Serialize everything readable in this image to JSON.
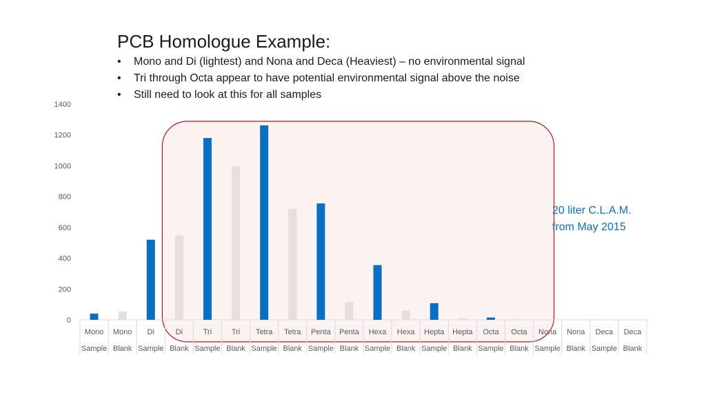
{
  "slide": {
    "title": "PCB Homologue Example:",
    "bullets": [
      "Mono and Di (lightest) and Nona and Deca (Heaviest) – no environmental signal",
      "Tri through Octa appear to have potential environmental signal above the noise",
      "Still need to look at this for all samples"
    ],
    "bullet_symbol": "•",
    "annotation": [
      "20 liter C.L.A.M.",
      "from May 2015"
    ]
  },
  "colors": {
    "sample_bar": "#0a6fc2",
    "blank_bar": "#e5e0df",
    "highlight_border": "#c0141c",
    "highlight_fill": "#fbf3f2",
    "annotation_text": "#0a6fc2",
    "axis_text": "#595959",
    "grid_line": "#d9d9d9"
  },
  "chart_data": {
    "type": "bar",
    "title": "",
    "xlabel": "",
    "ylabel": "",
    "ylim": [
      0,
      1400
    ],
    "yticks": [
      0,
      200,
      400,
      600,
      800,
      1000,
      1200,
      1400
    ],
    "grid": false,
    "categories": [
      {
        "top": "Mono",
        "bottom": "Sample"
      },
      {
        "top": "Mono",
        "bottom": "Blank"
      },
      {
        "top": "Di",
        "bottom": "Sample"
      },
      {
        "top": "Di",
        "bottom": "Blank"
      },
      {
        "top": "Tri",
        "bottom": "Sample"
      },
      {
        "top": "Tri",
        "bottom": "Blank"
      },
      {
        "top": "Tetra",
        "bottom": "Sample"
      },
      {
        "top": "Tetra",
        "bottom": "Blank"
      },
      {
        "top": "Penta",
        "bottom": "Sample"
      },
      {
        "top": "Penta",
        "bottom": "Blank"
      },
      {
        "top": "Hexa",
        "bottom": "Sample"
      },
      {
        "top": "Hexa",
        "bottom": "Blank"
      },
      {
        "top": "Hepta",
        "bottom": "Sample"
      },
      {
        "top": "Hepta",
        "bottom": "Blank"
      },
      {
        "top": "Octa",
        "bottom": "Sample"
      },
      {
        "top": "Octa",
        "bottom": "Blank"
      },
      {
        "top": "Nona",
        "bottom": "Sample"
      },
      {
        "top": "Nona",
        "bottom": "Blank"
      },
      {
        "top": "Deca",
        "bottom": "Sample"
      },
      {
        "top": "Deca",
        "bottom": "Blank"
      }
    ],
    "values": [
      40,
      55,
      520,
      548,
      1180,
      995,
      1262,
      720,
      755,
      115,
      355,
      60,
      108,
      10,
      15,
      5,
      0,
      0,
      0,
      0
    ],
    "bar_kinds": [
      "sample",
      "blank",
      "sample",
      "blank",
      "sample",
      "blank",
      "sample",
      "blank",
      "sample",
      "blank",
      "sample",
      "blank",
      "sample",
      "blank",
      "sample",
      "blank",
      "sample",
      "blank",
      "sample",
      "blank"
    ],
    "highlight_range": [
      "Tri",
      "Octa"
    ]
  }
}
